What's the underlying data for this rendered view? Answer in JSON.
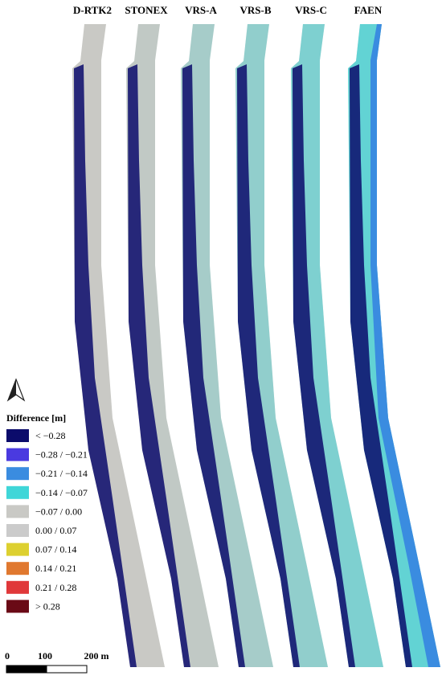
{
  "columns": [
    "D-RTK2",
    "STONEX",
    "VRS-A",
    "VRS-B",
    "VRS-C",
    "FAEN"
  ],
  "legend": {
    "title": "Difference [m]",
    "items": [
      {
        "label": "< −0.28",
        "color": "#0b0b6b"
      },
      {
        "label": "−0.28 / −0.21",
        "color": "#4a3ae0"
      },
      {
        "label": "−0.21 / −0.14",
        "color": "#3a8ce0"
      },
      {
        "label": "−0.14 / −0.07",
        "color": "#3fd6d8"
      },
      {
        "label": "−0.07 / 0.00",
        "color": "#c9c9c5"
      },
      {
        "label": "0.00 / 0.07",
        "color": "#cbcbcb"
      },
      {
        "label": "0.07 / 0.14",
        "color": "#ddd030"
      },
      {
        "label": "0.14 / 0.21",
        "color": "#e0782f"
      },
      {
        "label": "0.21 / 0.28",
        "color": "#e0383a"
      },
      {
        "label": "> 0.28",
        "color": "#6a0a16"
      }
    ]
  },
  "scale_bar": {
    "labels": [
      "0",
      "100",
      "200 m"
    ]
  }
}
